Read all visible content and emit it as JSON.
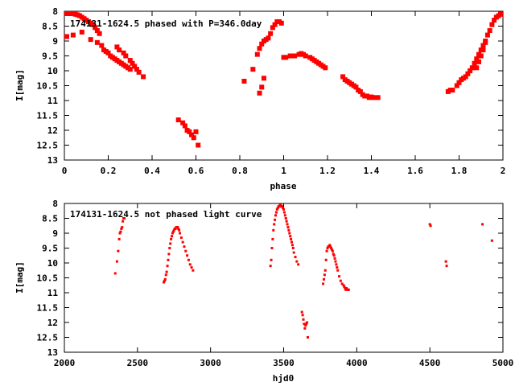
{
  "chart_data": [
    {
      "type": "scatter",
      "title": "174131-1624.5 phased with P=346.0day",
      "xlabel": "phase",
      "ylabel": "I[mag]",
      "xlim": [
        0,
        2
      ],
      "ylim": [
        8,
        13
      ],
      "y_inverted": true,
      "xticks": [
        0,
        0.2,
        0.4,
        0.6,
        0.8,
        1,
        1.2,
        1.4,
        1.6,
        1.8,
        2
      ],
      "xtick_labels": [
        "0",
        "0.2",
        "0.4",
        "0.6",
        "0.8",
        "1",
        "1.2",
        "1.4",
        "1.6",
        "1.8",
        "2"
      ],
      "yticks": [
        8,
        8.5,
        9,
        9.5,
        10,
        10.5,
        11,
        11.5,
        12,
        12.5,
        13
      ],
      "ytick_labels": [
        "8",
        "8.5",
        "9",
        "9.5",
        "10",
        "10.5",
        "11",
        "11.5",
        "12",
        "12.5",
        "13"
      ],
      "marker_color": "#ff0000",
      "series": [
        {
          "x": [
            0.0,
            0.01,
            0.02,
            0.03,
            0.04,
            0.05,
            0.06,
            0.07,
            0.08,
            0.09,
            0.1,
            0.11,
            0.12,
            0.13,
            0.14,
            0.15,
            0.16,
            0.0,
            0.04,
            0.08,
            0.12,
            0.15,
            0.17,
            0.18,
            0.19,
            0.2,
            0.21,
            0.22,
            0.23,
            0.24,
            0.25,
            0.26,
            0.27,
            0.28,
            0.29,
            0.3,
            0.24,
            0.25,
            0.27,
            0.28,
            0.3,
            0.31,
            0.32,
            0.33,
            0.34,
            0.36,
            0.52,
            0.54,
            0.55,
            0.56,
            0.57,
            0.58,
            0.59,
            0.6,
            0.61,
            0.82,
            0.86,
            0.88,
            0.89,
            0.9,
            0.91,
            0.92,
            0.93,
            0.89,
            0.9,
            0.91,
            0.94,
            0.95,
            0.96,
            0.97,
            0.98,
            0.99,
            1.0,
            1.01,
            1.03,
            1.05,
            1.07,
            1.08,
            1.09,
            1.1,
            1.12,
            1.13,
            1.14,
            1.15,
            1.16,
            1.17,
            1.18,
            1.19,
            1.27,
            1.28,
            1.29,
            1.3,
            1.31,
            1.32,
            1.33,
            1.34,
            1.35,
            1.36,
            1.37,
            1.38,
            1.39,
            1.4,
            1.41,
            1.43,
            1.75,
            1.76,
            1.77,
            1.79,
            1.8,
            1.81,
            1.82,
            1.83,
            1.84,
            1.85,
            1.86,
            1.87,
            1.88,
            1.89,
            1.9,
            1.91,
            1.92,
            1.93,
            1.94,
            1.95,
            1.96,
            1.97,
            1.98,
            1.99,
            2.0,
            1.88,
            1.89,
            1.9,
            1.91,
            1.92
          ],
          "y": [
            8.05,
            8.05,
            8.08,
            8.08,
            8.07,
            8.1,
            8.12,
            8.15,
            8.2,
            8.25,
            8.3,
            8.35,
            8.4,
            8.45,
            8.55,
            8.65,
            8.75,
            8.85,
            8.8,
            8.7,
            8.95,
            9.05,
            9.15,
            9.3,
            9.35,
            9.4,
            9.5,
            9.55,
            9.6,
            9.65,
            9.7,
            9.75,
            9.8,
            9.85,
            9.9,
            9.95,
            9.2,
            9.3,
            9.4,
            9.5,
            9.65,
            9.75,
            9.85,
            9.95,
            10.05,
            10.2,
            11.65,
            11.75,
            11.85,
            12.0,
            12.05,
            12.15,
            12.25,
            12.05,
            12.5,
            10.35,
            9.95,
            9.45,
            9.25,
            9.1,
            9.0,
            8.95,
            8.9,
            10.75,
            10.55,
            10.25,
            8.75,
            8.55,
            8.45,
            8.35,
            8.35,
            8.4,
            9.55,
            9.55,
            9.5,
            9.5,
            9.45,
            9.42,
            9.45,
            9.5,
            9.55,
            9.6,
            9.65,
            9.7,
            9.75,
            9.8,
            9.85,
            9.9,
            10.2,
            10.3,
            10.35,
            10.4,
            10.45,
            10.5,
            10.55,
            10.65,
            10.7,
            10.8,
            10.85,
            10.85,
            10.9,
            10.88,
            10.9,
            10.9,
            10.7,
            10.65,
            10.65,
            10.5,
            10.4,
            10.3,
            10.25,
            10.2,
            10.1,
            10.0,
            9.9,
            9.75,
            9.6,
            9.45,
            9.3,
            9.15,
            9.0,
            8.8,
            8.65,
            8.45,
            8.3,
            8.2,
            8.15,
            8.1,
            8.1,
            9.9,
            9.7,
            9.5,
            9.3,
            9.05
          ]
        }
      ]
    },
    {
      "type": "scatter",
      "title": "174131-1624.5 not phased light curve",
      "xlabel": "hjd0",
      "ylabel": "I[mag]",
      "xlim": [
        2000,
        5000
      ],
      "ylim": [
        8,
        13
      ],
      "y_inverted": true,
      "xticks": [
        2000,
        2500,
        3000,
        3500,
        4000,
        4500,
        5000
      ],
      "xtick_labels": [
        "2000",
        "2500",
        "3000",
        "3500",
        "4000",
        "4500",
        "5000"
      ],
      "yticks": [
        8,
        8.5,
        9,
        9.5,
        10,
        10.5,
        11,
        11.5,
        12,
        12.5,
        13
      ],
      "ytick_labels": [
        "8",
        "8.5",
        "9",
        "9.5",
        "10",
        "10.5",
        "11",
        "11.5",
        "12",
        "12.5",
        "13"
      ],
      "marker_color": "#ff0000",
      "series": [
        {
          "x": [
            2348,
            2360,
            2368,
            2375,
            2380,
            2385,
            2390,
            2395,
            2400,
            2405,
            2410,
            2680,
            2685,
            2690,
            2695,
            2700,
            2705,
            2710,
            2715,
            2720,
            2725,
            2730,
            2735,
            2740,
            2745,
            2750,
            2755,
            2760,
            2765,
            2770,
            2775,
            2780,
            2785,
            2790,
            2800,
            2810,
            2820,
            2830,
            2840,
            2850,
            2860,
            2870,
            2880,
            3410,
            3415,
            3420,
            3425,
            3430,
            3435,
            3440,
            3445,
            3450,
            3455,
            3460,
            3465,
            3470,
            3475,
            3480,
            3485,
            3490,
            3495,
            3500,
            3505,
            3510,
            3515,
            3520,
            3525,
            3530,
            3535,
            3540,
            3545,
            3550,
            3555,
            3560,
            3565,
            3570,
            3580,
            3590,
            3600,
            3625,
            3630,
            3635,
            3640,
            3645,
            3650,
            3655,
            3660,
            3665,
            3770,
            3775,
            3780,
            3785,
            3790,
            3795,
            3800,
            3805,
            3810,
            3815,
            3820,
            3825,
            3830,
            3835,
            3840,
            3845,
            3850,
            3855,
            3860,
            3865,
            3870,
            3880,
            3890,
            3900,
            3910,
            3915,
            3920,
            3925,
            3930,
            3935,
            3940,
            3945,
            4500,
            4505,
            4610,
            4615,
            4860,
            4925
          ],
          "y": [
            10.35,
            9.95,
            9.6,
            9.2,
            9.0,
            8.95,
            8.85,
            8.8,
            8.6,
            8.5,
            8.5,
            10.65,
            10.6,
            10.55,
            10.4,
            10.3,
            10.1,
            9.9,
            9.7,
            9.5,
            9.35,
            9.2,
            9.1,
            9.0,
            8.95,
            8.9,
            8.85,
            8.85,
            8.8,
            8.8,
            8.8,
            8.85,
            8.9,
            9.0,
            9.15,
            9.3,
            9.45,
            9.6,
            9.75,
            9.9,
            10.05,
            10.15,
            10.25,
            10.1,
            9.9,
            9.5,
            9.2,
            8.9,
            8.7,
            8.55,
            8.4,
            8.3,
            8.2,
            8.15,
            8.1,
            8.1,
            8.05,
            8.05,
            8.1,
            8.1,
            8.15,
            8.2,
            8.3,
            8.4,
            8.5,
            8.6,
            8.7,
            8.8,
            8.9,
            9.0,
            9.1,
            9.2,
            9.3,
            9.4,
            9.5,
            9.65,
            9.8,
            9.95,
            10.05,
            11.65,
            11.75,
            11.9,
            12.05,
            12.2,
            12.1,
            12.05,
            12.0,
            12.5,
            10.7,
            10.55,
            10.4,
            10.25,
            9.9,
            9.6,
            9.5,
            9.45,
            9.45,
            9.4,
            9.45,
            9.5,
            9.55,
            9.6,
            9.7,
            9.75,
            9.85,
            9.95,
            10.05,
            10.15,
            10.25,
            10.45,
            10.6,
            10.7,
            10.75,
            10.8,
            10.85,
            10.9,
            10.85,
            10.9,
            10.9,
            10.9,
            8.7,
            8.75,
            9.95,
            10.1,
            8.7,
            9.25
          ]
        }
      ]
    }
  ]
}
